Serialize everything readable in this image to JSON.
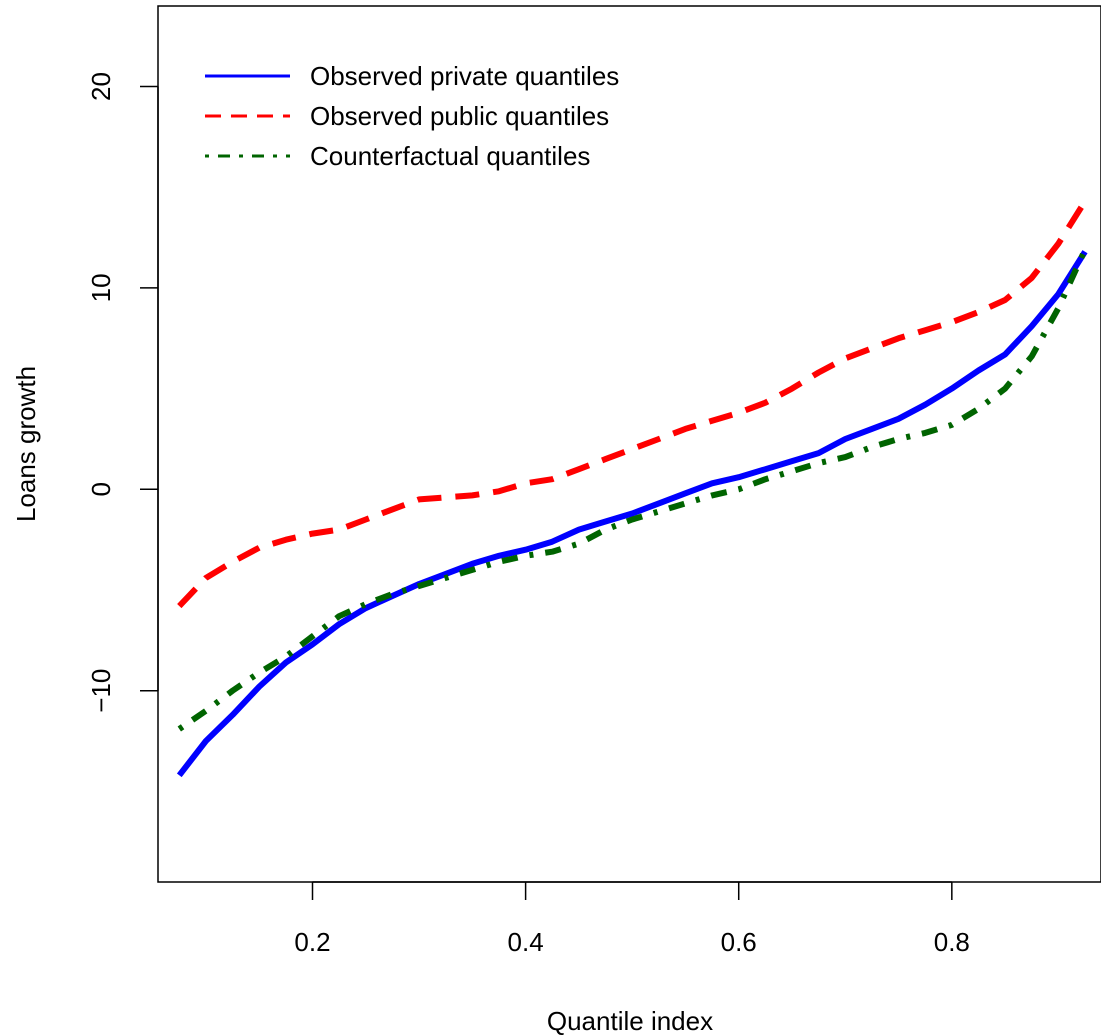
{
  "chart_data": {
    "type": "line",
    "title": "",
    "xlabel": "Quantile index",
    "ylabel": "Loans growth",
    "xlim": [
      0.055,
      0.94
    ],
    "ylim": [
      -19.5,
      24
    ],
    "x_ticks": [
      0.2,
      0.4,
      0.6,
      0.8
    ],
    "x_tick_labels": [
      "0.2",
      "0.4",
      "0.6",
      "0.8"
    ],
    "y_ticks": [
      -10,
      0,
      10,
      20
    ],
    "y_tick_labels": [
      "−10",
      "0",
      "10",
      "20"
    ],
    "grid": false,
    "legend_position": "top-left",
    "x": [
      0.075,
      0.1,
      0.125,
      0.15,
      0.175,
      0.2,
      0.225,
      0.25,
      0.275,
      0.3,
      0.325,
      0.35,
      0.375,
      0.4,
      0.425,
      0.45,
      0.475,
      0.5,
      0.525,
      0.55,
      0.575,
      0.6,
      0.625,
      0.65,
      0.675,
      0.7,
      0.725,
      0.75,
      0.775,
      0.8,
      0.825,
      0.85,
      0.875,
      0.9,
      0.925
    ],
    "series": [
      {
        "name": "Observed private quantiles",
        "color": "#0000ff",
        "dash": "solid",
        "values": [
          -14.2,
          -12.5,
          -11.2,
          -9.8,
          -8.6,
          -7.7,
          -6.7,
          -5.9,
          -5.3,
          -4.7,
          -4.2,
          -3.7,
          -3.3,
          -3.0,
          -2.6,
          -2.0,
          -1.6,
          -1.2,
          -0.7,
          -0.2,
          0.3,
          0.6,
          1.0,
          1.4,
          1.8,
          2.5,
          3.0,
          3.5,
          4.2,
          5.0,
          5.9,
          6.7,
          8.1,
          9.7,
          11.8
        ]
      },
      {
        "name": "Observed public quantiles",
        "color": "#ff0000",
        "dash": "dashed",
        "values": [
          -5.8,
          -4.4,
          -3.6,
          -2.9,
          -2.5,
          -2.2,
          -2.0,
          -1.5,
          -1.0,
          -0.5,
          -0.4,
          -0.3,
          -0.1,
          0.3,
          0.5,
          1.0,
          1.5,
          2.0,
          2.5,
          3.0,
          3.4,
          3.8,
          4.3,
          5.0,
          5.8,
          6.5,
          7.0,
          7.5,
          7.9,
          8.3,
          8.8,
          9.4,
          10.5,
          12.2,
          14.3
        ]
      },
      {
        "name": "Counterfactual quantiles",
        "color": "#006400",
        "dash": "dotdash",
        "values": [
          -11.9,
          -11.0,
          -10.0,
          -9.1,
          -8.3,
          -7.3,
          -6.3,
          -5.7,
          -5.2,
          -4.8,
          -4.4,
          -4.0,
          -3.6,
          -3.3,
          -3.1,
          -2.7,
          -2.0,
          -1.5,
          -1.1,
          -0.7,
          -0.3,
          0.0,
          0.5,
          0.9,
          1.3,
          1.6,
          2.1,
          2.5,
          2.8,
          3.2,
          4.0,
          5.0,
          6.6,
          9.0,
          11.9
        ]
      }
    ]
  }
}
